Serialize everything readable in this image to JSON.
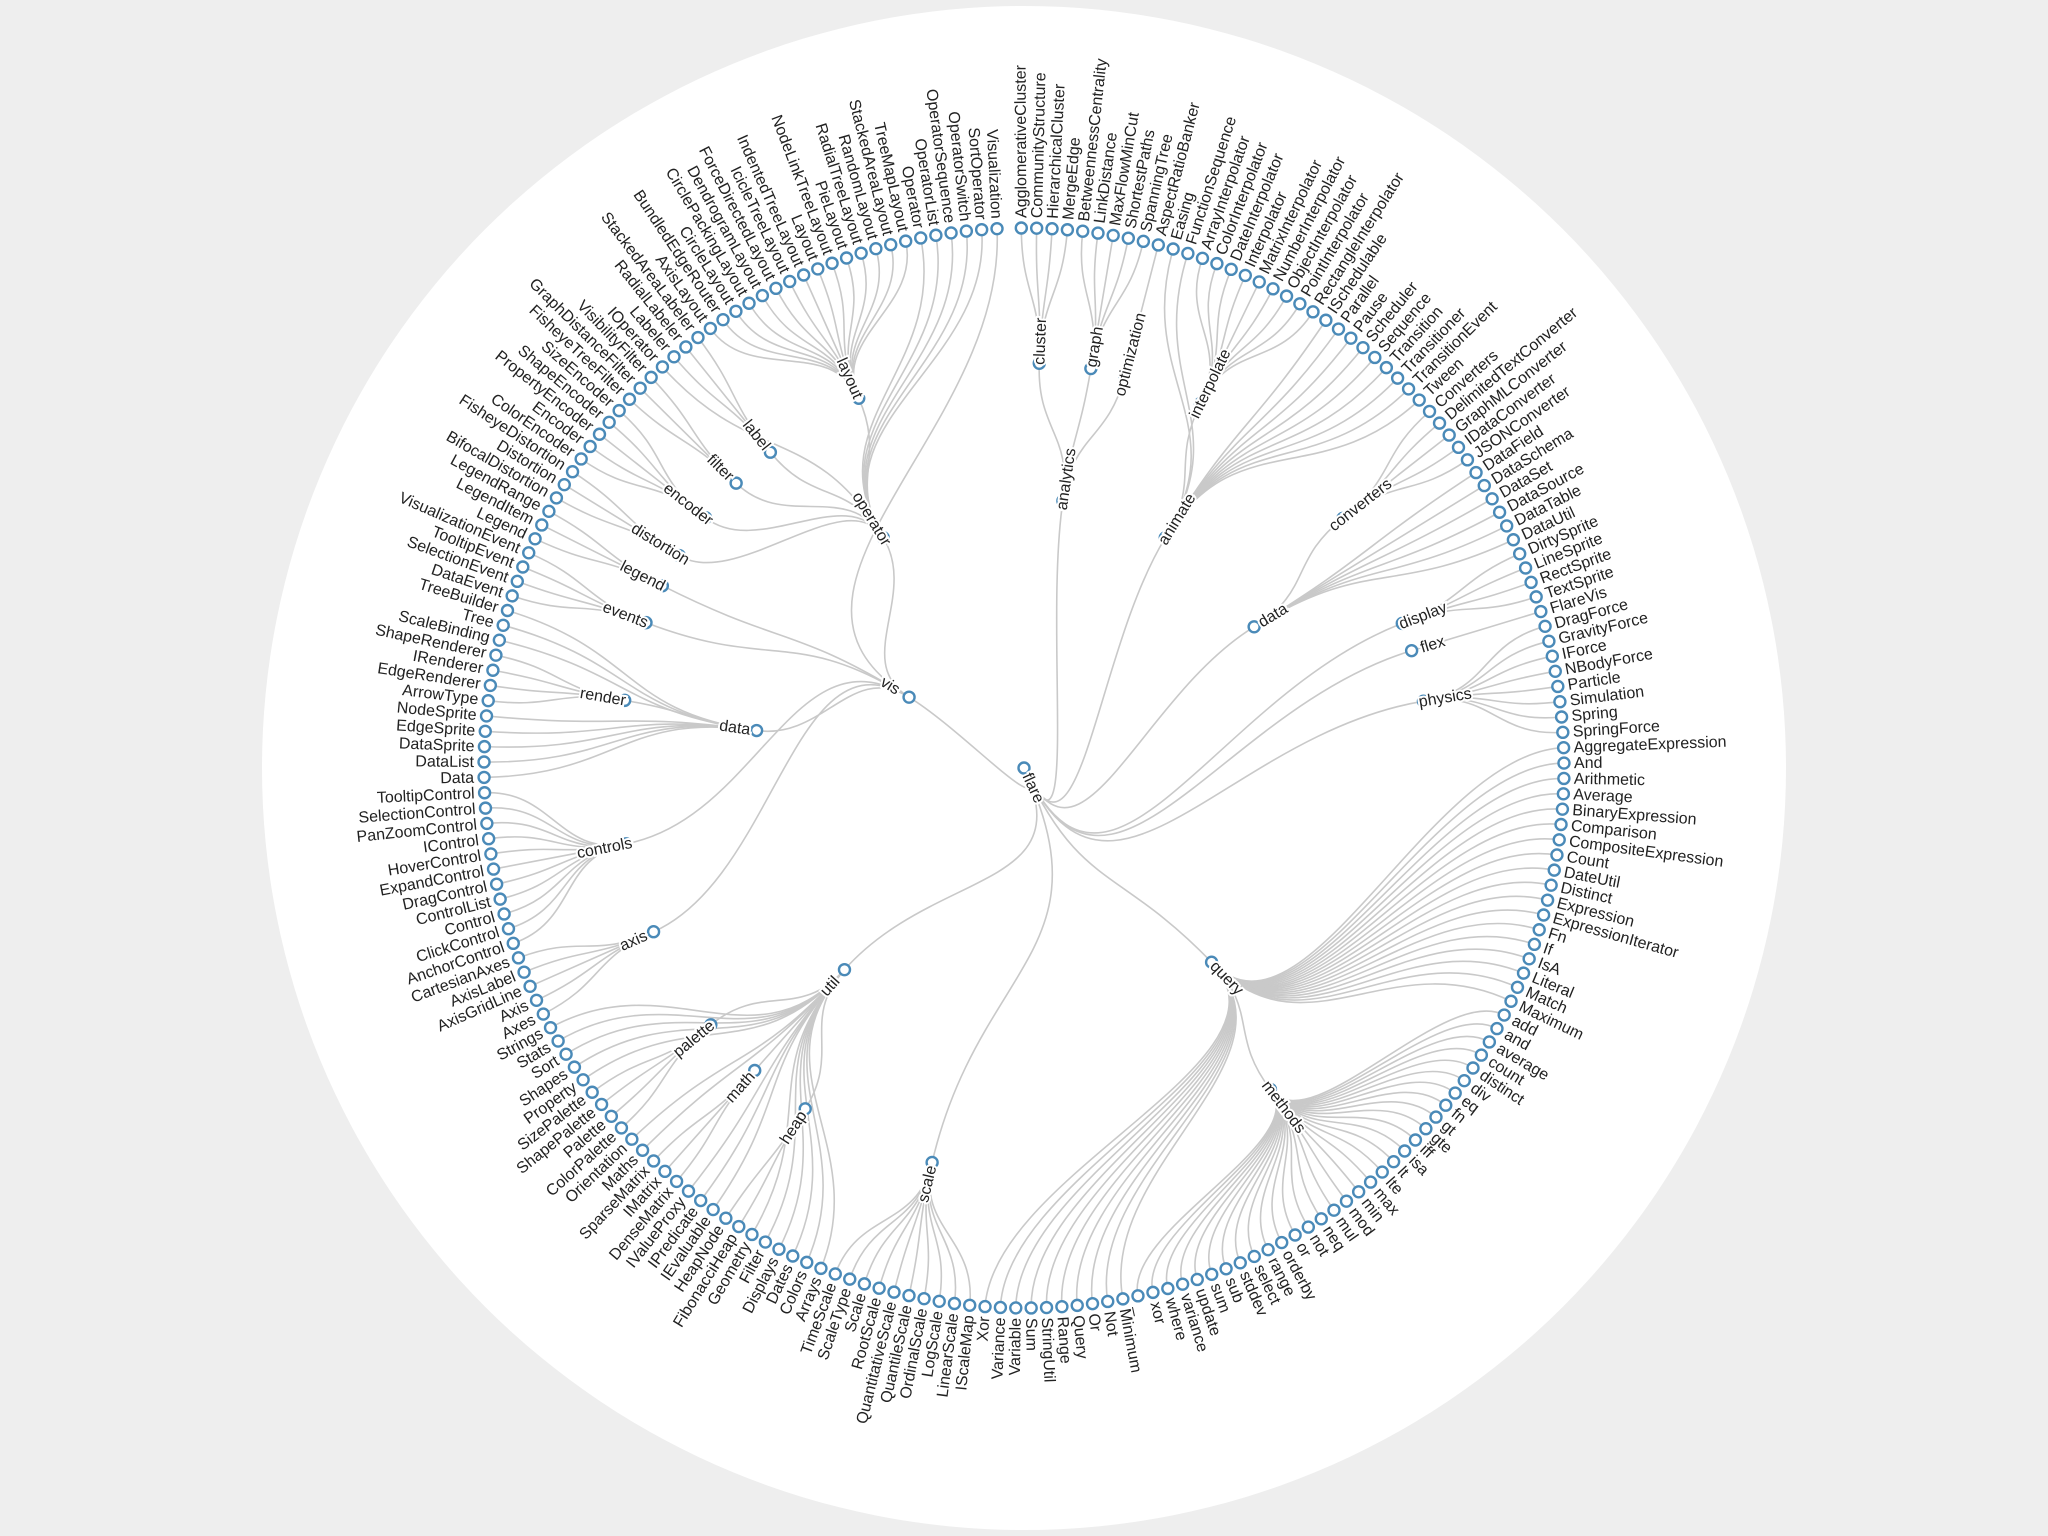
{
  "tree": {
    "name": "flare",
    "children": [
      {
        "name": "analytics",
        "children": [
          {
            "name": "cluster",
            "children": [
              {
                "name": "AgglomerativeCluster"
              },
              {
                "name": "CommunityStructure"
              },
              {
                "name": "HierarchicalCluster"
              },
              {
                "name": "MergeEdge"
              }
            ]
          },
          {
            "name": "graph",
            "children": [
              {
                "name": "BetweennessCentrality"
              },
              {
                "name": "LinkDistance"
              },
              {
                "name": "MaxFlowMinCut"
              },
              {
                "name": "ShortestPaths"
              },
              {
                "name": "SpanningTree"
              }
            ]
          },
          {
            "name": "optimization",
            "children": [
              {
                "name": "AspectRatioBanker"
              }
            ]
          }
        ]
      },
      {
        "name": "animate",
        "children": [
          {
            "name": "Easing"
          },
          {
            "name": "FunctionSequence"
          },
          {
            "name": "interpolate",
            "children": [
              {
                "name": "ArrayInterpolator"
              },
              {
                "name": "ColorInterpolator"
              },
              {
                "name": "DateInterpolator"
              },
              {
                "name": "Interpolator"
              },
              {
                "name": "MatrixInterpolator"
              },
              {
                "name": "NumberInterpolator"
              },
              {
                "name": "ObjectInterpolator"
              },
              {
                "name": "PointInterpolator"
              },
              {
                "name": "RectangleInterpolator"
              }
            ]
          },
          {
            "name": "ISchedulable"
          },
          {
            "name": "Parallel"
          },
          {
            "name": "Pause"
          },
          {
            "name": "Scheduler"
          },
          {
            "name": "Sequence"
          },
          {
            "name": "Transition"
          },
          {
            "name": "Transitioner"
          },
          {
            "name": "TransitionEvent"
          },
          {
            "name": "Tween"
          }
        ]
      },
      {
        "name": "data",
        "children": [
          {
            "name": "converters",
            "children": [
              {
                "name": "Converters"
              },
              {
                "name": "DelimitedTextConverter"
              },
              {
                "name": "GraphMLConverter"
              },
              {
                "name": "IDataConverter"
              },
              {
                "name": "JSONConverter"
              }
            ]
          },
          {
            "name": "DataField"
          },
          {
            "name": "DataSchema"
          },
          {
            "name": "DataSet"
          },
          {
            "name": "DataSource"
          },
          {
            "name": "DataTable"
          },
          {
            "name": "DataUtil"
          }
        ]
      },
      {
        "name": "display",
        "children": [
          {
            "name": "DirtySprite"
          },
          {
            "name": "LineSprite"
          },
          {
            "name": "RectSprite"
          },
          {
            "name": "TextSprite"
          }
        ]
      },
      {
        "name": "flex",
        "children": [
          {
            "name": "FlareVis"
          }
        ]
      },
      {
        "name": "physics",
        "children": [
          {
            "name": "DragForce"
          },
          {
            "name": "GravityForce"
          },
          {
            "name": "IForce"
          },
          {
            "name": "NBodyForce"
          },
          {
            "name": "Particle"
          },
          {
            "name": "Simulation"
          },
          {
            "name": "Spring"
          },
          {
            "name": "SpringForce"
          }
        ]
      },
      {
        "name": "query",
        "children": [
          {
            "name": "AggregateExpression"
          },
          {
            "name": "And"
          },
          {
            "name": "Arithmetic"
          },
          {
            "name": "Average"
          },
          {
            "name": "BinaryExpression"
          },
          {
            "name": "Comparison"
          },
          {
            "name": "CompositeExpression"
          },
          {
            "name": "Count"
          },
          {
            "name": "DateUtil"
          },
          {
            "name": "Distinct"
          },
          {
            "name": "Expression"
          },
          {
            "name": "ExpressionIterator"
          },
          {
            "name": "Fn"
          },
          {
            "name": "If"
          },
          {
            "name": "IsA"
          },
          {
            "name": "Literal"
          },
          {
            "name": "Match"
          },
          {
            "name": "Maximum"
          },
          {
            "name": "methods",
            "children": [
              {
                "name": "add"
              },
              {
                "name": "and"
              },
              {
                "name": "average"
              },
              {
                "name": "count"
              },
              {
                "name": "distinct"
              },
              {
                "name": "div"
              },
              {
                "name": "eq"
              },
              {
                "name": "fn"
              },
              {
                "name": "gt"
              },
              {
                "name": "gte"
              },
              {
                "name": "iff"
              },
              {
                "name": "isa"
              },
              {
                "name": "lt"
              },
              {
                "name": "lte"
              },
              {
                "name": "max"
              },
              {
                "name": "min"
              },
              {
                "name": "mod"
              },
              {
                "name": "mul"
              },
              {
                "name": "neq"
              },
              {
                "name": "not"
              },
              {
                "name": "or"
              },
              {
                "name": "orderby"
              },
              {
                "name": "range"
              },
              {
                "name": "select"
              },
              {
                "name": "stddev"
              },
              {
                "name": "sub"
              },
              {
                "name": "sum"
              },
              {
                "name": "update"
              },
              {
                "name": "variance"
              },
              {
                "name": "where"
              },
              {
                "name": "xor"
              },
              {
                "name": "_"
              }
            ]
          },
          {
            "name": "Minimum"
          },
          {
            "name": "Not"
          },
          {
            "name": "Or"
          },
          {
            "name": "Query"
          },
          {
            "name": "Range"
          },
          {
            "name": "StringUtil"
          },
          {
            "name": "Sum"
          },
          {
            "name": "Variable"
          },
          {
            "name": "Variance"
          },
          {
            "name": "Xor"
          }
        ]
      },
      {
        "name": "scale",
        "children": [
          {
            "name": "IScaleMap"
          },
          {
            "name": "LinearScale"
          },
          {
            "name": "LogScale"
          },
          {
            "name": "OrdinalScale"
          },
          {
            "name": "QuantileScale"
          },
          {
            "name": "QuantitativeScale"
          },
          {
            "name": "RootScale"
          },
          {
            "name": "Scale"
          },
          {
            "name": "ScaleType"
          },
          {
            "name": "TimeScale"
          }
        ]
      },
      {
        "name": "util",
        "children": [
          {
            "name": "Arrays"
          },
          {
            "name": "Colors"
          },
          {
            "name": "Dates"
          },
          {
            "name": "Displays"
          },
          {
            "name": "Filter"
          },
          {
            "name": "Geometry"
          },
          {
            "name": "heap",
            "children": [
              {
                "name": "FibonacciHeap"
              },
              {
                "name": "HeapNode"
              }
            ]
          },
          {
            "name": "IEvaluable"
          },
          {
            "name": "IPredicate"
          },
          {
            "name": "IValueProxy"
          },
          {
            "name": "math",
            "children": [
              {
                "name": "DenseMatrix"
              },
              {
                "name": "IMatrix"
              },
              {
                "name": "SparseMatrix"
              }
            ]
          },
          {
            "name": "Maths"
          },
          {
            "name": "Orientation"
          },
          {
            "name": "palette",
            "children": [
              {
                "name": "ColorPalette"
              },
              {
                "name": "Palette"
              },
              {
                "name": "ShapePalette"
              },
              {
                "name": "SizePalette"
              }
            ]
          },
          {
            "name": "Property"
          },
          {
            "name": "Shapes"
          },
          {
            "name": "Sort"
          },
          {
            "name": "Stats"
          },
          {
            "name": "Strings"
          }
        ]
      },
      {
        "name": "vis",
        "children": [
          {
            "name": "axis",
            "children": [
              {
                "name": "Axes"
              },
              {
                "name": "Axis"
              },
              {
                "name": "AxisGridLine"
              },
              {
                "name": "AxisLabel"
              },
              {
                "name": "CartesianAxes"
              }
            ]
          },
          {
            "name": "controls",
            "children": [
              {
                "name": "AnchorControl"
              },
              {
                "name": "ClickControl"
              },
              {
                "name": "Control"
              },
              {
                "name": "ControlList"
              },
              {
                "name": "DragControl"
              },
              {
                "name": "ExpandControl"
              },
              {
                "name": "HoverControl"
              },
              {
                "name": "IControl"
              },
              {
                "name": "PanZoomControl"
              },
              {
                "name": "SelectionControl"
              },
              {
                "name": "TooltipControl"
              }
            ]
          },
          {
            "name": "data",
            "children": [
              {
                "name": "Data"
              },
              {
                "name": "DataList"
              },
              {
                "name": "DataSprite"
              },
              {
                "name": "EdgeSprite"
              },
              {
                "name": "NodeSprite"
              },
              {
                "name": "render",
                "children": [
                  {
                    "name": "ArrowType"
                  },
                  {
                    "name": "EdgeRenderer"
                  },
                  {
                    "name": "IRenderer"
                  },
                  {
                    "name": "ShapeRenderer"
                  }
                ]
              },
              {
                "name": "ScaleBinding"
              },
              {
                "name": "Tree"
              },
              {
                "name": "TreeBuilder"
              }
            ]
          },
          {
            "name": "events",
            "children": [
              {
                "name": "DataEvent"
              },
              {
                "name": "SelectionEvent"
              },
              {
                "name": "TooltipEvent"
              },
              {
                "name": "VisualizationEvent"
              }
            ]
          },
          {
            "name": "legend",
            "children": [
              {
                "name": "Legend"
              },
              {
                "name": "LegendItem"
              },
              {
                "name": "LegendRange"
              }
            ]
          },
          {
            "name": "operator",
            "children": [
              {
                "name": "distortion",
                "children": [
                  {
                    "name": "BifocalDistortion"
                  },
                  {
                    "name": "Distortion"
                  },
                  {
                    "name": "FisheyeDistortion"
                  }
                ]
              },
              {
                "name": "encoder",
                "children": [
                  {
                    "name": "ColorEncoder"
                  },
                  {
                    "name": "Encoder"
                  },
                  {
                    "name": "PropertyEncoder"
                  },
                  {
                    "name": "ShapeEncoder"
                  },
                  {
                    "name": "SizeEncoder"
                  }
                ]
              },
              {
                "name": "filter",
                "children": [
                  {
                    "name": "FisheyeTreeFilter"
                  },
                  {
                    "name": "GraphDistanceFilter"
                  },
                  {
                    "name": "VisibilityFilter"
                  }
                ]
              },
              {
                "name": "IOperator"
              },
              {
                "name": "label",
                "children": [
                  {
                    "name": "Labeler"
                  },
                  {
                    "name": "RadialLabeler"
                  },
                  {
                    "name": "StackedAreaLabeler"
                  }
                ]
              },
              {
                "name": "layout",
                "children": [
                  {
                    "name": "AxisLayout"
                  },
                  {
                    "name": "BundledEdgeRouter"
                  },
                  {
                    "name": "CircleLayout"
                  },
                  {
                    "name": "CirclePackingLayout"
                  },
                  {
                    "name": "DendrogramLayout"
                  },
                  {
                    "name": "ForceDirectedLayout"
                  },
                  {
                    "name": "IcicleTreeLayout"
                  },
                  {
                    "name": "IndentedTreeLayout"
                  },
                  {
                    "name": "Layout"
                  },
                  {
                    "name": "NodeLinkTreeLayout"
                  },
                  {
                    "name": "PieLayout"
                  },
                  {
                    "name": "RadialTreeLayout"
                  },
                  {
                    "name": "RandomLayout"
                  },
                  {
                    "name": "StackedAreaLayout"
                  },
                  {
                    "name": "TreeMapLayout"
                  }
                ]
              },
              {
                "name": "Operator"
              },
              {
                "name": "OperatorList"
              },
              {
                "name": "OperatorSequence"
              },
              {
                "name": "OperatorSwitch"
              },
              {
                "name": "SortOperator"
              }
            ]
          },
          {
            "name": "Visualization"
          }
        ]
      }
    ]
  },
  "colors": {
    "background": "#eeeeee",
    "disc": "#ffffff",
    "link": "#c9c9c9",
    "node_stroke": "#4a8ab8",
    "node_fill": "#ffffff",
    "text": "#222222"
  }
}
